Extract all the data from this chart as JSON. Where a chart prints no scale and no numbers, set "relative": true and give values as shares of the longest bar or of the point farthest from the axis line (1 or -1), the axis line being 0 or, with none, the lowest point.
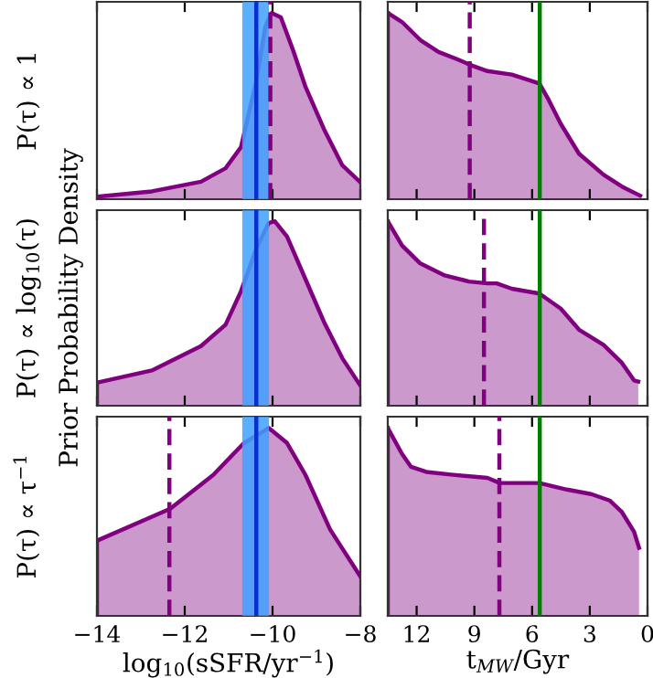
{
  "chart_data": [
    {
      "type": "area",
      "relative": true,
      "ylabel": "P(τ) ∝ 1",
      "xlim": [
        -14,
        -8
      ],
      "xticks": [
        -14,
        -12,
        -10,
        -8
      ],
      "tick_labels": false,
      "x": [
        -14,
        -12.75,
        -11.63,
        -11.07,
        -10.72,
        -10.37,
        -10.16,
        -10.02,
        -9.81,
        -9.53,
        -9.25,
        -8.83,
        -8.41,
        -8.0
      ],
      "series": [
        {
          "color": "#800080",
          "values": [
            0.013,
            0.042,
            0.094,
            0.166,
            0.279,
            0.636,
            0.93,
            1,
            0.977,
            0.799,
            0.604,
            0.377,
            0.182,
            0.091
          ]
        }
      ],
      "bands": [
        {
          "axis": "x",
          "from": -10.69,
          "to": -10.08,
          "color": "#3fa0ff"
        }
      ],
      "ref_lines": [
        {
          "axis": "x",
          "value": -10.37,
          "color": "#0a2fd0",
          "line_style": "solid"
        },
        {
          "axis": "x",
          "value": -10.05,
          "color": "#800080",
          "line_style": "dashed"
        }
      ]
    },
    {
      "type": "area",
      "relative": true,
      "xlim": [
        13.5,
        0
      ],
      "xticks": [
        12,
        9,
        6,
        3,
        0
      ],
      "tick_labels": false,
      "x": [
        13.5,
        12.76,
        11.81,
        10.86,
        9.9,
        9.11,
        8.32,
        7.05,
        5.62,
        5.14,
        4.51,
        3.56,
        2.29,
        1.33,
        0.38
      ],
      "series": [
        {
          "color": "#800080",
          "values": [
            1,
            0.952,
            0.855,
            0.791,
            0.752,
            0.717,
            0.688,
            0.669,
            0.621,
            0.534,
            0.405,
            0.244,
            0.132,
            0.068,
            0.019
          ]
        }
      ],
      "ref_lines": [
        {
          "axis": "x",
          "value": 5.6,
          "color": "#008000",
          "line_style": "solid"
        },
        {
          "axis": "x",
          "value": 9.24,
          "color": "#800080",
          "line_style": "dashed"
        }
      ]
    },
    {
      "type": "area",
      "relative": true,
      "ylabel": "P(τ) ∝ log$_{10}$(τ)",
      "annotations": [
        "Prior Probability Density"
      ],
      "xlim": [
        -14,
        -8
      ],
      "xticks": [
        -14,
        -12,
        -10,
        -8
      ],
      "tick_labels": false,
      "x": [
        -14,
        -12.75,
        -11.63,
        -11.07,
        -10.72,
        -10.37,
        -10.09,
        -9.95,
        -9.67,
        -9.25,
        -8.83,
        -8.41,
        -8.0
      ],
      "series": [
        {
          "color": "#800080",
          "values": [
            0.125,
            0.191,
            0.323,
            0.439,
            0.62,
            0.851,
            0.99,
            1,
            0.917,
            0.686,
            0.455,
            0.257,
            0.109
          ]
        }
      ],
      "bands": [
        {
          "axis": "x",
          "from": -10.69,
          "to": -10.08,
          "color": "#3fa0ff"
        }
      ],
      "ref_lines": [
        {
          "axis": "x",
          "value": -10.37,
          "color": "#0a2fd0",
          "line_style": "solid"
        }
      ]
    },
    {
      "type": "area",
      "relative": true,
      "xlim": [
        13.5,
        0
      ],
      "xticks": [
        12,
        9,
        6,
        3,
        0
      ],
      "tick_labels": false,
      "x": [
        13.5,
        12.76,
        11.81,
        10.54,
        9.27,
        8.32,
        7.84,
        7.05,
        5.62,
        4.51,
        3.56,
        2.29,
        1.33,
        0.7,
        0.48
      ],
      "series": [
        {
          "color": "#800080",
          "values": [
            1,
            0.869,
            0.771,
            0.706,
            0.673,
            0.663,
            0.663,
            0.634,
            0.608,
            0.526,
            0.412,
            0.33,
            0.232,
            0.137,
            0.131
          ]
        }
      ],
      "ref_lines": [
        {
          "axis": "x",
          "value": 5.6,
          "color": "#008000",
          "line_style": "solid"
        },
        {
          "axis": "x",
          "value": 8.5,
          "color": "#800080",
          "line_style": "dashed"
        }
      ]
    },
    {
      "type": "area",
      "relative": true,
      "ylabel": "P(τ) ∝ τ$^{−1}$",
      "xlabel": "log$_{10}$(sSFR/yr$^{−1}$)",
      "xlim": [
        -14,
        -8
      ],
      "xticks": [
        {
          "value": -14,
          "label": "−14"
        },
        {
          "value": -12,
          "label": "−12"
        },
        {
          "value": -10,
          "label": "−10"
        },
        {
          "value": -8,
          "label": "−8"
        }
      ],
      "tick_labels": "x",
      "x": [
        -14,
        -12.33,
        -11.35,
        -10.65,
        -10.09,
        -9.67,
        -9.25,
        -8.69,
        -8.0
      ],
      "series": [
        {
          "color": "#800080",
          "values": [
            0.4,
            0.57,
            0.75,
            0.92,
            1,
            0.92,
            0.75,
            0.46,
            0.21
          ]
        }
      ],
      "bands": [
        {
          "axis": "x",
          "from": -10.69,
          "to": -10.08,
          "color": "#3fa0ff"
        }
      ],
      "ref_lines": [
        {
          "axis": "x",
          "value": -10.37,
          "color": "#0a2fd0",
          "line_style": "solid"
        },
        {
          "axis": "x",
          "value": -12.35,
          "color": "#800080",
          "line_style": "dashed"
        }
      ]
    },
    {
      "type": "area",
      "relative": true,
      "xlabel": "t$_{MW}$/Gyr",
      "xlim": [
        13.5,
        0
      ],
      "xticks": [
        12,
        9,
        6,
        3,
        0
      ],
      "tick_labels": "x",
      "x": [
        13.5,
        12.76,
        12.29,
        11.5,
        10.22,
        8.32,
        7.68,
        7.05,
        5.62,
        4.19,
        2.92,
        1.97,
        1.33,
        0.7,
        0.44
      ],
      "series": [
        {
          "color": "#800080",
          "values": [
            1,
            0.862,
            0.793,
            0.766,
            0.752,
            0.734,
            0.707,
            0.707,
            0.707,
            0.672,
            0.648,
            0.614,
            0.552,
            0.448,
            0.362
          ]
        }
      ],
      "ref_lines": [
        {
          "axis": "x",
          "value": 5.6,
          "color": "#008000",
          "line_style": "solid"
        },
        {
          "axis": "x",
          "value": 7.7,
          "color": "#800080",
          "line_style": "dashed"
        }
      ]
    }
  ]
}
